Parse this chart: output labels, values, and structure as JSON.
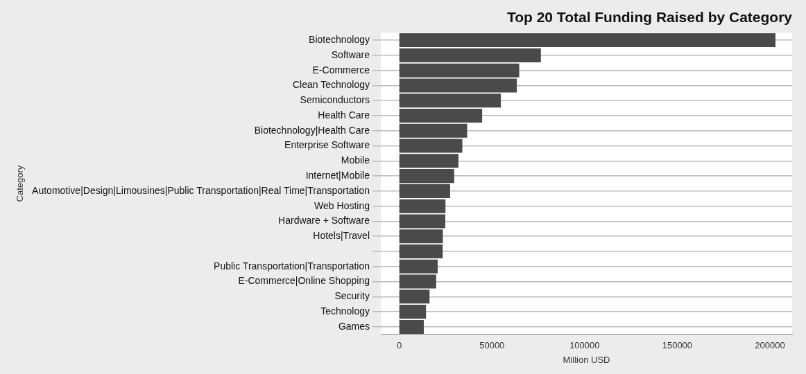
{
  "chart_data": {
    "type": "bar",
    "orientation": "horizontal",
    "title": "Top 20 Total Funding Raised by Category",
    "xlabel": "Million USD",
    "ylabel": "Category",
    "categories": [
      "Biotechnology",
      "Software",
      "E-Commerce",
      "Clean Technology",
      "Semiconductors",
      "Health Care",
      "Biotechnology|Health Care",
      "Enterprise Software",
      "Mobile",
      "Internet|Mobile",
      "Automotive|Design|Limousines|Public Transportation|Real Time|Transportation",
      "Web Hosting",
      "Hardware + Software",
      "Hotels|Travel",
      null,
      "Public Transportation|Transportation",
      "E-Commerce|Online Shopping",
      "Security",
      "Technology",
      "Games"
    ],
    "values": [
      203000,
      76400,
      64700,
      63400,
      54800,
      44700,
      36600,
      34000,
      31900,
      29600,
      27400,
      24900,
      24800,
      23500,
      23400,
      20700,
      19900,
      16300,
      14400,
      13200
    ],
    "color": "#4a4a4a",
    "xlim": [
      -10000,
      212000
    ],
    "xticks": [
      0,
      50000,
      100000,
      150000,
      200000
    ],
    "grid": "y",
    "legend": false
  }
}
